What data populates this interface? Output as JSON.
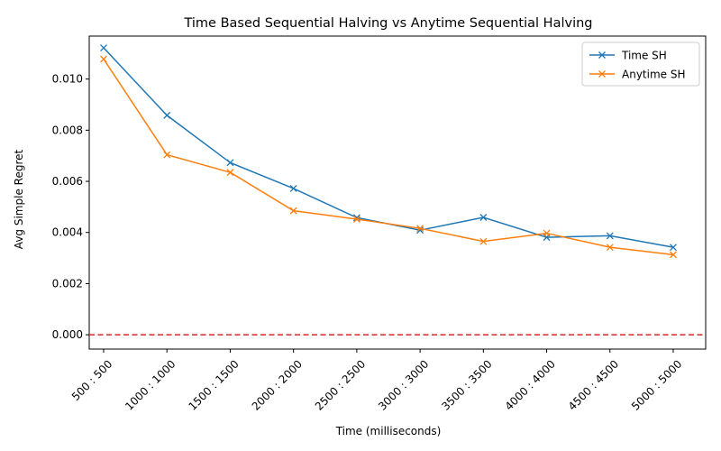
{
  "chart_data": {
    "type": "line",
    "title": "Time Based Sequential Halving vs Anytime Sequential Halving",
    "xlabel": "Time (milliseconds)",
    "ylabel": "Avg Simple Regret",
    "categories": [
      "500 : 500",
      "1000 : 1000",
      "1500 : 1500",
      "2000 : 2000",
      "2500 : 2500",
      "3000 : 3000",
      "3500 : 3500",
      "4000 : 4000",
      "4500 : 4500",
      "5000 : 5000"
    ],
    "ylim": [
      -0.00056,
      0.01168
    ],
    "yticks": [
      "0.000",
      "0.002",
      "0.004",
      "0.006",
      "0.008",
      "0.010"
    ],
    "ytick_values": [
      0,
      0.002,
      0.004,
      0.006,
      0.008,
      0.01
    ],
    "reference_line": {
      "y": 0,
      "color": "#d62728",
      "style": "dashed"
    },
    "legend_position": "top-right",
    "series": [
      {
        "name": "Time SH",
        "color": "#1f77b4",
        "marker": "x",
        "values": [
          0.01122,
          0.00858,
          0.00673,
          0.00572,
          0.00458,
          0.00409,
          0.00459,
          0.00381,
          0.00387,
          0.00342
        ]
      },
      {
        "name": "Anytime SH",
        "color": "#ff7f0e",
        "marker": "x",
        "values": [
          0.01078,
          0.00704,
          0.00635,
          0.00485,
          0.00452,
          0.00416,
          0.00365,
          0.00397,
          0.00342,
          0.00313
        ]
      }
    ]
  }
}
